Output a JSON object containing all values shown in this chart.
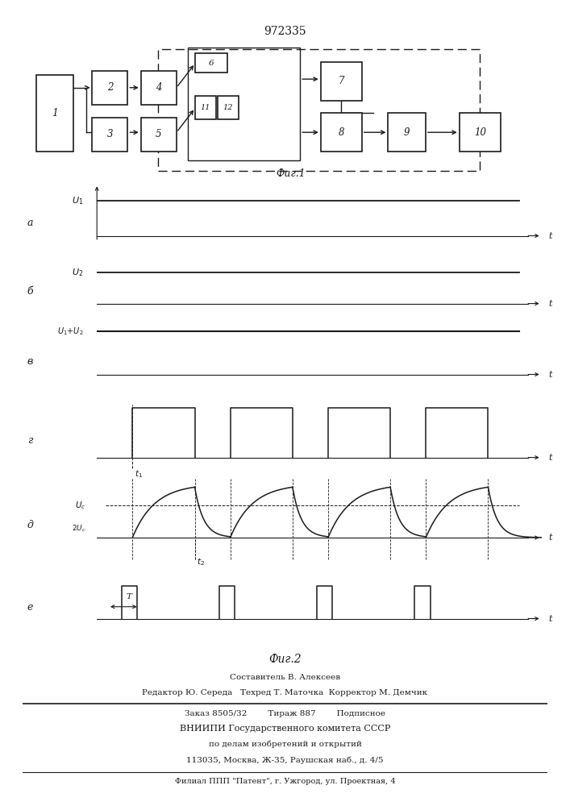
{
  "patent_number": "972335",
  "fig1_label": "Фиг.1",
  "fig2_label": "Фиг.2",
  "bg_color": "#ffffff",
  "line_color": "#1a1a1a",
  "footer_lines": [
    "Составитель В. Алексеев",
    "Редактор Ю. Середа   Техред Т. Маточка  Корректор М. Демчик",
    "Заказ 8505/32        Тираж 887        Подписное",
    "ВНИИПИ Государственного комитета СССР",
    "по делам изобретений и открытий",
    "113035, Москва, Ж-35, Раушская наб., д. 4/5",
    "Филиал ППП \"Патент\", г. Ужгород, ул. Проектная, 4"
  ]
}
